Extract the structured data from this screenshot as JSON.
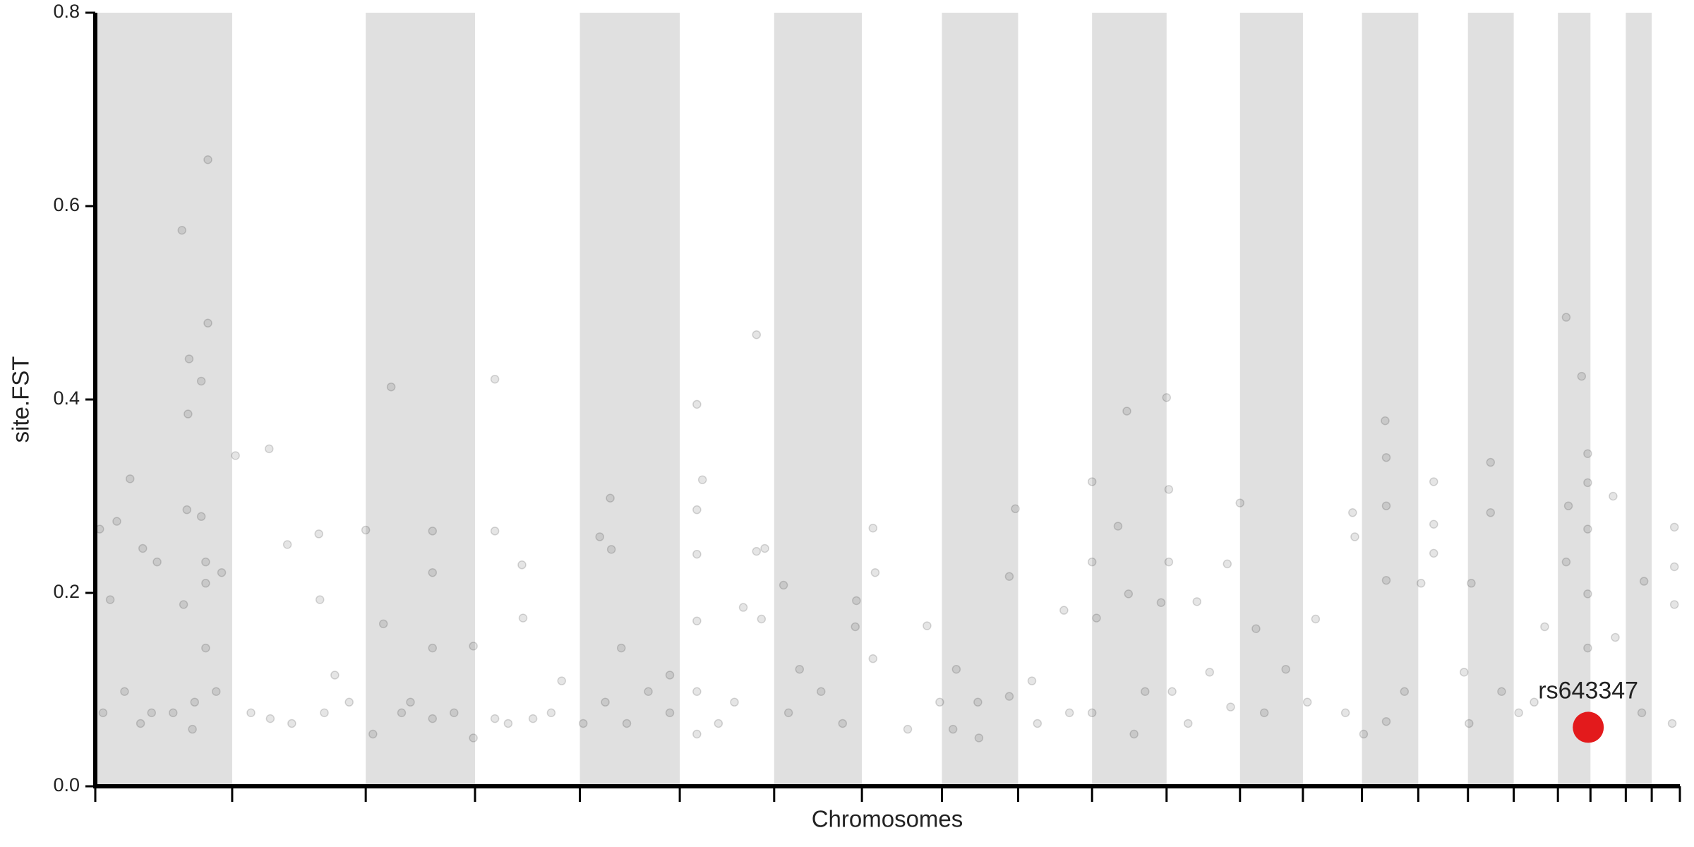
{
  "chart_data": {
    "type": "scatter",
    "xlabel": "Chromosomes",
    "ylabel": "site.FST",
    "xlim": [
      0,
      2871
    ],
    "xticks": [
      0,
      248,
      490,
      688,
      878,
      1059,
      1230,
      1389,
      1534,
      1672,
      1806,
      1941,
      2074,
      2188,
      2295,
      2397,
      2487,
      2570,
      2650,
      2709,
      2773,
      2820,
      2871
    ],
    "ylim": [
      0,
      0.8
    ],
    "yticks": [
      {
        "value": 0,
        "label": "0.0"
      },
      0.2,
      0.4,
      0.6,
      0.8
    ],
    "band_color": "#e0e0e0",
    "color": "#000000",
    "x": [
      8,
      14,
      63,
      39,
      27,
      86,
      112,
      157,
      170,
      168,
      192,
      204,
      204,
      166,
      192,
      200,
      200,
      229,
      200,
      160,
      180,
      102,
      53,
      82,
      141,
      176,
      219,
      254,
      315,
      348,
      356,
      405,
      407,
      434,
      460,
      490,
      536,
      522,
      555,
      611,
      611,
      611,
      611,
      685,
      685,
      724,
      724,
      724,
      773,
      775,
      793,
      845,
      914,
      933,
      935,
      924,
      884,
      953,
      1002,
      1041,
      1090,
      1100,
      1090,
      1090,
      1090,
      1090,
      1090,
      1129,
      1174,
      1198,
      1198,
      1213,
      1207,
      1247,
      1276,
      1315,
      1377,
      1379,
      1409,
      1413,
      1409,
      1507,
      1530,
      1554,
      1560,
      1599,
      1656,
      1667,
      1656,
      1697,
      1755,
      1806,
      1806,
      1806,
      1814,
      1853,
      1869,
      1872,
      1902,
      1931,
      1941,
      1945,
      1945,
      1951,
      1996,
      2019,
      2051,
      2057,
      2074,
      2103,
      2157,
      2211,
      2278,
      2282,
      2337,
      2339,
      2339,
      2339,
      2339,
      2372,
      2402,
      2425,
      2425,
      2425,
      2480,
      2493,
      2528,
      2528,
      2548,
      2626,
      2665,
      2693,
      2669,
      2665,
      2704,
      2704,
      2704,
      2704,
      2704,
      2750,
      2754,
      2806,
      2861,
      2861,
      2861,
      2802,
      2857,
      2607,
      2579,
      2489,
      2298,
      2265,
      2196,
      2118,
      1980,
      1882,
      1765,
      1707,
      1601,
      1472,
      1354,
      1256,
      1158,
      1041,
      963,
      826,
      748,
      650,
      571,
      503,
      415,
      317,
      282
    ],
    "values": [
      0.266,
      0.076,
      0.318,
      0.274,
      0.193,
      0.246,
      0.232,
      0.575,
      0.442,
      0.385,
      0.419,
      0.648,
      0.479,
      0.286,
      0.279,
      0.232,
      0.21,
      0.221,
      0.143,
      0.188,
      0.087,
      0.076,
      0.098,
      0.065,
      0.076,
      0.059,
      0.098,
      0.342,
      0.349,
      0.25,
      0.065,
      0.261,
      0.193,
      0.115,
      0.087,
      0.265,
      0.413,
      0.168,
      0.076,
      0.264,
      0.221,
      0.143,
      0.07,
      0.145,
      0.05,
      0.421,
      0.264,
      0.07,
      0.229,
      0.174,
      0.07,
      0.109,
      0.258,
      0.298,
      0.245,
      0.087,
      0.065,
      0.143,
      0.098,
      0.115,
      0.395,
      0.317,
      0.286,
      0.24,
      0.171,
      0.098,
      0.054,
      0.065,
      0.185,
      0.467,
      0.243,
      0.246,
      0.173,
      0.208,
      0.121,
      0.098,
      0.165,
      0.192,
      0.267,
      0.221,
      0.132,
      0.166,
      0.087,
      0.059,
      0.121,
      0.087,
      0.093,
      0.287,
      0.217,
      0.109,
      0.182,
      0.315,
      0.232,
      0.076,
      0.174,
      0.269,
      0.388,
      0.199,
      0.098,
      0.19,
      0.402,
      0.307,
      0.232,
      0.098,
      0.191,
      0.118,
      0.23,
      0.082,
      0.293,
      0.163,
      0.121,
      0.173,
      0.283,
      0.258,
      0.378,
      0.34,
      0.29,
      0.213,
      0.067,
      0.098,
      0.21,
      0.315,
      0.271,
      0.241,
      0.118,
      0.21,
      0.335,
      0.283,
      0.098,
      0.165,
      0.485,
      0.424,
      0.29,
      0.232,
      0.344,
      0.314,
      0.266,
      0.199,
      0.143,
      0.3,
      0.154,
      0.212,
      0.268,
      0.227,
      0.188,
      0.076,
      0.065,
      0.087,
      0.076,
      0.065,
      0.054,
      0.076,
      0.087,
      0.076,
      0.065,
      0.054,
      0.076,
      0.065,
      0.05,
      0.059,
      0.065,
      0.076,
      0.087,
      0.076,
      0.065,
      0.076,
      0.065,
      0.076,
      0.087,
      0.054,
      0.076,
      0.07,
      0.076
    ],
    "highlight": {
      "label": "rs643347",
      "x": 2705,
      "y": 0.061,
      "color": "#e31a1c"
    }
  }
}
